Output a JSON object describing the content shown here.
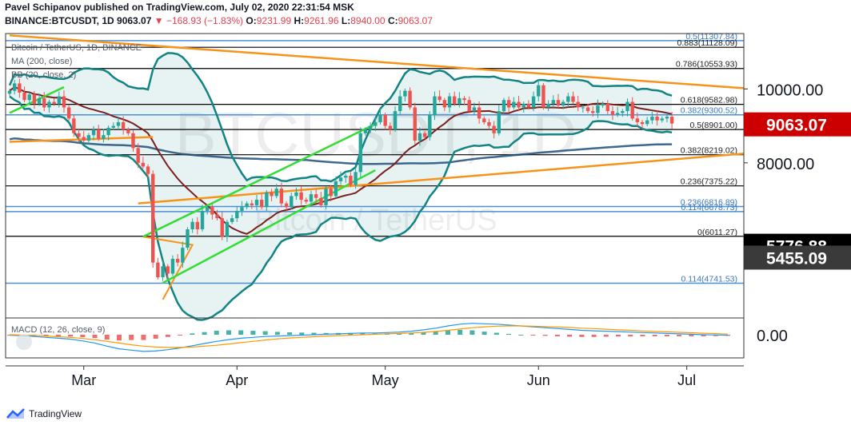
{
  "header": {
    "line1": "Pavel Schipanov published on TradingView.com, July 02, 2020 22:31:54 MSK",
    "symbol": "BINANCE:BTCUSDT, 1D",
    "last": "9063.07",
    "change": "−168.93 (−1.83%)",
    "o_label": "O:",
    "o": "9231.99",
    "h_label": "H:",
    "h": "9261.96",
    "l_label": "L:",
    "l": "8940.00",
    "c_label": "C:",
    "c": "9063.07"
  },
  "legend": {
    "title": "Bitcoin / TetherUS, 1D, BINANCE",
    "ma": "MA (200, close)",
    "bb": "BB (20, close, 2)",
    "macd": "MACD (12, 26, close, 9)"
  },
  "watermark": {
    "line1": "BTCUSDT, 1D",
    "line2": "Bitcoin / TetherUS"
  },
  "footer": {
    "brand": "TradingView"
  },
  "colors": {
    "up": "#26a69a",
    "down": "#ef5350",
    "bb": "#138484",
    "ma": "#1f4e79",
    "midband": "#7b1f1f",
    "fib": "#000000",
    "fib_blue": "#4a90d9",
    "trend_orange": "#f7931a",
    "channel_green": "#33dd33",
    "price_label_bg": "#cc0000"
  },
  "chart_data": {
    "type": "candlestick",
    "title": "Bitcoin / TetherUS, 1D, BINANCE",
    "x_axis": {
      "type": "date",
      "tick_labels": [
        "Mar",
        "Apr",
        "May",
        "Jun",
        "Jul"
      ]
    },
    "y_axis": {
      "tick_labels": [
        "10000.00",
        "8000.00",
        "0.00"
      ],
      "range": [
        3800,
        11500
      ]
    },
    "current_price": "9063.07",
    "price_labels": [
      "9063.07",
      "5776.88",
      "5455.09"
    ],
    "fib_levels": [
      {
        "label": "0.5(11307.84)",
        "value": 11307.84,
        "color": "blue"
      },
      {
        "label": "0.883(11128.09)",
        "value": 11128.09,
        "color": "black"
      },
      {
        "label": "0.786(10553.93)",
        "value": 10553.93,
        "color": "black"
      },
      {
        "label": "0.618(9582.98)",
        "value": 9582.98,
        "color": "black"
      },
      {
        "label": "0.382(9300.52)",
        "value": 9300.52,
        "color": "blue"
      },
      {
        "label": "0.5(8901.00)",
        "value": 8901.0,
        "color": "black"
      },
      {
        "label": "0.382(8219.02)",
        "value": 8219.02,
        "color": "black"
      },
      {
        "label": "0.236(7375.22)",
        "value": 7375.22,
        "color": "black"
      },
      {
        "label": "0.236(6816.89)",
        "value": 6816.89,
        "color": "blue"
      },
      {
        "label": "0.114(6678.73)",
        "value": 6678.73,
        "color": "blue"
      },
      {
        "label": "0(6011.27)",
        "value": 6011.27,
        "color": "black"
      },
      {
        "label": "0.114(4741.53)",
        "value": 4741.53,
        "color": "blue"
      }
    ],
    "close_series": [
      9950,
      10150,
      9900,
      9700,
      9850,
      9600,
      9750,
      9500,
      9650,
      9600,
      9800,
      9500,
      9200,
      8800,
      8700,
      8600,
      8750,
      8900,
      8650,
      8750,
      8950,
      9000,
      9100,
      8900,
      8800,
      8400,
      8000,
      7900,
      7700,
      5300,
      4900,
      5200,
      5000,
      5400,
      5300,
      5700,
      6200,
      6400,
      6200,
      6700,
      6800,
      6600,
      6500,
      6000,
      6400,
      6500,
      6700,
      6800,
      6900,
      6850,
      7000,
      6800,
      7200,
      7100,
      7300,
      6900,
      6800,
      7100,
      7200,
      7000,
      6950,
      7150,
      7050,
      6850,
      7300,
      7100,
      7500,
      7600,
      7650,
      7400,
      7750,
      8800,
      8900,
      9000,
      9100,
      9300,
      9000,
      8900,
      9400,
      9800,
      9950,
      9500,
      8600,
      8800,
      8700,
      9300,
      9800,
      9700,
      9500,
      9800,
      9600,
      9750,
      9700,
      9400,
      9500,
      9200,
      9100,
      9000,
      8800,
      9400,
      9700,
      9500,
      9650,
      9500,
      9600,
      9500,
      9800,
      10100,
      9500,
      9600,
      9700,
      9550,
      9650,
      9800,
      9650,
      9500,
      9500,
      9400,
      9350,
      9550,
      9600,
      9400,
      9300,
      9350,
      9400,
      9650,
      9200,
      9100,
      9050,
      9150,
      9250,
      9150,
      9200,
      9250,
      9063
    ],
    "macd_series": [
      -10,
      -20,
      -40,
      -60,
      -80,
      -100,
      -140,
      -190,
      -260,
      -320,
      -350,
      -380,
      -370,
      -340,
      -300,
      -250,
      -200,
      -150,
      -110,
      -80,
      -60,
      -40,
      -30,
      -20,
      -10,
      0,
      10,
      20,
      30,
      40,
      40,
      50,
      60,
      80,
      110,
      150,
      200,
      240,
      260,
      250,
      240,
      220,
      200,
      180,
      160,
      140,
      120,
      100,
      90,
      80,
      70,
      60,
      50,
      40,
      30,
      20,
      10,
      0,
      -5,
      -10
    ],
    "signal_series": [
      0,
      -5,
      -15,
      -30,
      -45,
      -60,
      -85,
      -115,
      -150,
      -190,
      -230,
      -260,
      -280,
      -290,
      -290,
      -280,
      -260,
      -240,
      -210,
      -180,
      -150,
      -120,
      -95,
      -75,
      -60,
      -45,
      -30,
      -20,
      -10,
      0,
      10,
      20,
      30,
      40,
      55,
      75,
      100,
      130,
      160,
      180,
      195,
      200,
      200,
      195,
      185,
      175,
      165,
      150,
      140,
      125,
      110,
      100,
      85,
      75,
      65,
      55,
      45,
      35,
      25,
      15
    ]
  }
}
